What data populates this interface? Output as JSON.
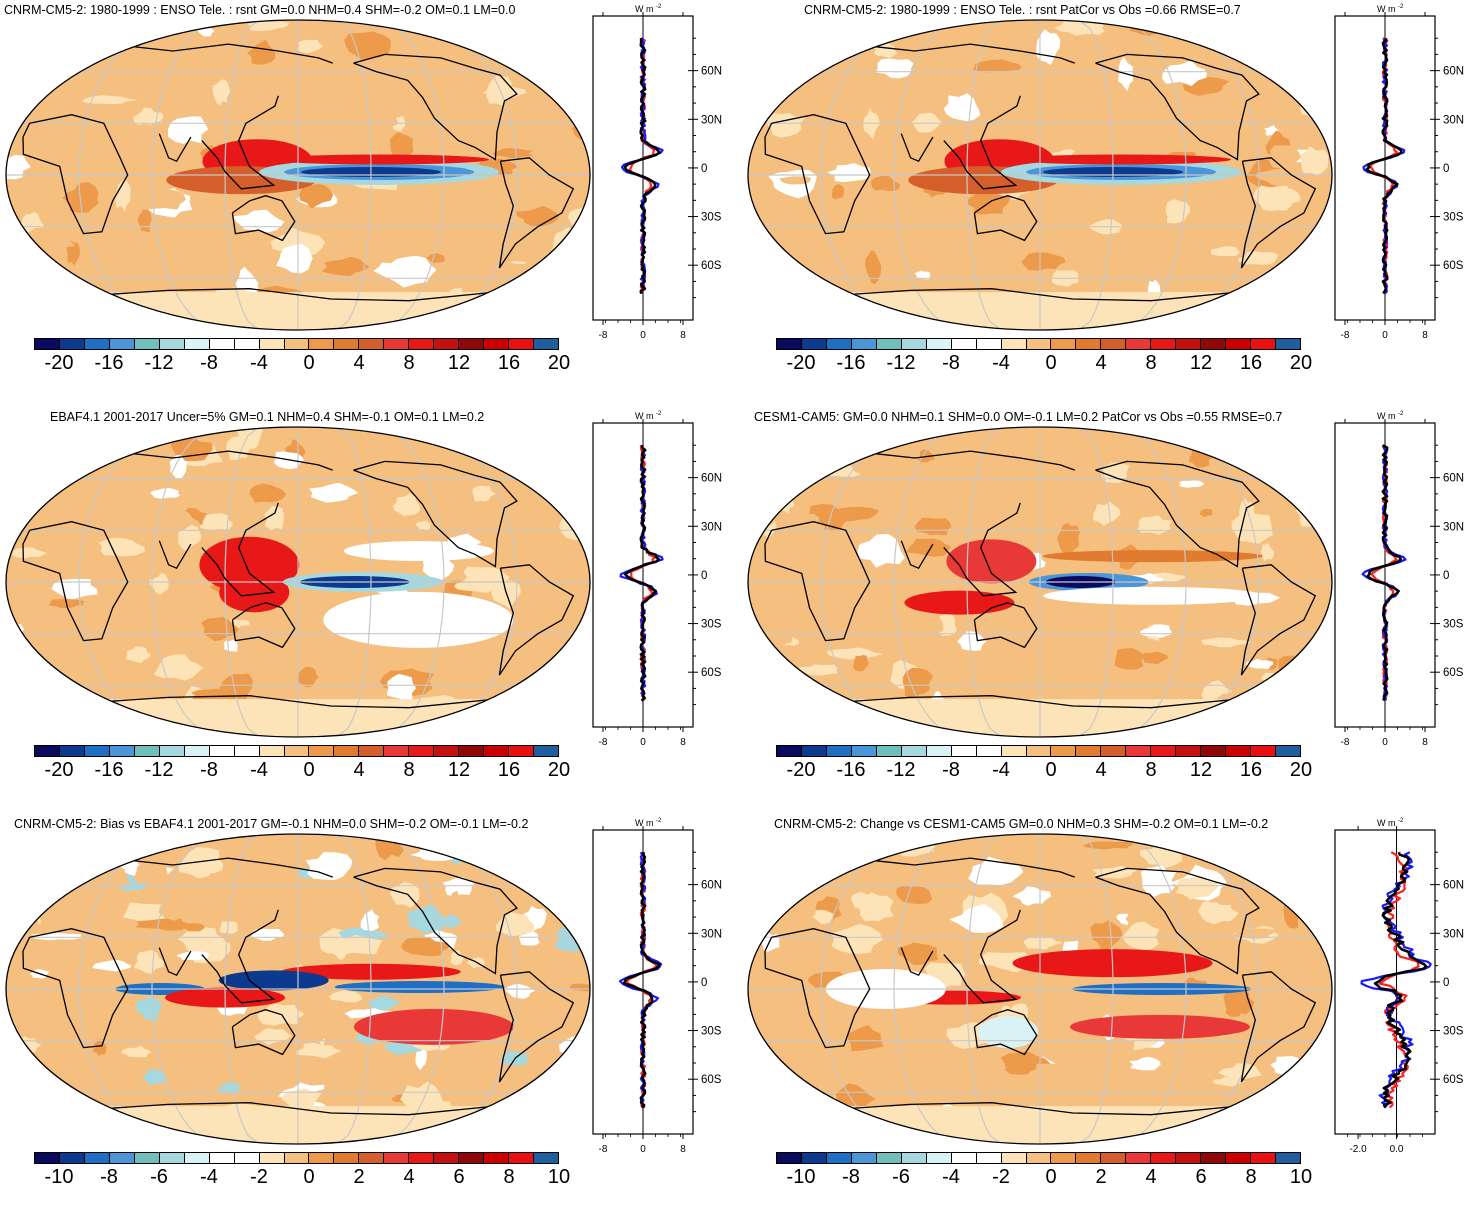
{
  "zonal_header": "W m",
  "zonal_header_exp": "-2",
  "lat_labels": [
    "60N",
    "30N",
    "0",
    "30S",
    "60S"
  ],
  "lat_values": [
    60,
    30,
    0,
    -30,
    -60
  ],
  "colors": {
    "scale": [
      "#0b0b5e",
      "#0c3a8f",
      "#1f6fc4",
      "#4a96d8",
      "#6fbfbc",
      "#a5d8df",
      "#d9f2f6",
      "#ffffff",
      "#ffffff",
      "#fde4b8",
      "#f5bf80",
      "#ed9a4a",
      "#e07b2f",
      "#d45f2b",
      "#e83838",
      "#e81818",
      "#c51010",
      "#8f0707",
      "#cc0000",
      "#e81010",
      "#1f5fa0"
    ],
    "land_line": "#000000",
    "grid_line": "#c8c8c8",
    "series_red": "#ff1f1f",
    "series_blue": "#1a1aff",
    "series_black": "#000000"
  },
  "panels": [
    {
      "title": "CNRM-CM5-2: 1980-1999 : ENSO Tele. : rsnt GM=0.0 NHM=0.4 SHM=-0.2 OM=0.1 LM=0.0",
      "cbar_labels": [
        "-20",
        "-16",
        "-12",
        "-8",
        "-4",
        "0",
        "4",
        "8",
        "12",
        "16",
        "20"
      ],
      "zonal_ticks": [
        "-8",
        "0",
        "8"
      ],
      "zonal_tick_values": [
        -8,
        0,
        8
      ],
      "zonal_range": [
        -10,
        10
      ],
      "pattern": "enso_model"
    },
    {
      "title": "CNRM-CM5-2: 1980-1999 : ENSO Tele. : rsnt PatCor vs Obs =0.66 RMSE=0.7",
      "cbar_labels": [
        "-20",
        "-16",
        "-12",
        "-8",
        "-4",
        "0",
        "4",
        "8",
        "12",
        "16",
        "20"
      ],
      "zonal_ticks": [
        "-8",
        "0",
        "8"
      ],
      "zonal_tick_values": [
        -8,
        0,
        8
      ],
      "zonal_range": [
        -10,
        10
      ],
      "pattern": "enso_model"
    },
    {
      "title": "EBAF4.1 2001-2017 Uncer=5% GM=0.1 NHM=0.4 SHM=-0.1 OM=0.1 LM=0.2",
      "cbar_labels": [
        "-20",
        "-16",
        "-12",
        "-8",
        "-4",
        "0",
        "4",
        "8",
        "12",
        "16",
        "20"
      ],
      "zonal_ticks": [
        "-8",
        "0",
        "8"
      ],
      "zonal_tick_values": [
        -8,
        0,
        8
      ],
      "zonal_range": [
        -10,
        10
      ],
      "pattern": "enso_obs"
    },
    {
      "title": "CESM1-CAM5: GM=0.0 NHM=0.1 SHM=0.0 OM=-0.1 LM=0.2 PatCor vs Obs =0.55 RMSE=0.7",
      "cbar_labels": [
        "-20",
        "-16",
        "-12",
        "-8",
        "-4",
        "0",
        "4",
        "8",
        "12",
        "16",
        "20"
      ],
      "zonal_ticks": [
        "-8",
        "0",
        "8"
      ],
      "zonal_tick_values": [
        -8,
        0,
        8
      ],
      "zonal_range": [
        -10,
        10
      ],
      "pattern": "enso_ref"
    },
    {
      "title": "CNRM-CM5-2: Bias vs EBAF4.1 2001-2017 GM=-0.1 NHM=0.0 SHM=-0.2 OM=-0.1 LM=-0.2",
      "cbar_labels": [
        "-10",
        "-8",
        "-6",
        "-4",
        "-2",
        "0",
        "2",
        "4",
        "6",
        "8",
        "10"
      ],
      "zonal_ticks": [
        "-8",
        "0",
        "8"
      ],
      "zonal_tick_values": [
        -8,
        0,
        8
      ],
      "zonal_range": [
        -10,
        10
      ],
      "pattern": "bias"
    },
    {
      "title": "CNRM-CM5-2: Change vs CESM1-CAM5 GM=0.0 NHM=0.3 SHM=-0.2 OM=0.1 LM=-0.2",
      "cbar_labels": [
        "-10",
        "-8",
        "-6",
        "-4",
        "-2",
        "0",
        "2",
        "4",
        "6",
        "8",
        "10"
      ],
      "zonal_ticks": [
        "-2.0",
        "0.0"
      ],
      "zonal_tick_values": [
        -2.0,
        0.0
      ],
      "zonal_range": [
        -3.2,
        2.0
      ],
      "pattern": "change"
    }
  ]
}
